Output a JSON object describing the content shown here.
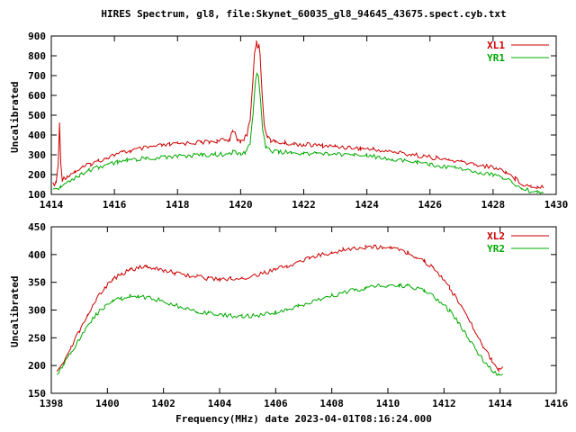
{
  "title": "HIRES Spectrum, gl8, file:Skynet_60035_gl8_94645_43675.spect.cyb.txt",
  "xlabel": "Frequency(MHz) date 2023-04-01T08:16:24.000",
  "colors": {
    "xl": "#cc0000",
    "yr": "#00aa00",
    "text": "#000000",
    "axis": "#000000"
  },
  "chart_data": [
    {
      "type": "line",
      "title": "Top spectrum panel",
      "ylabel": "Uncalibrated",
      "xlim": [
        1414,
        1430
      ],
      "ylim": [
        100,
        900
      ],
      "xticks": [
        1414,
        1416,
        1418,
        1420,
        1422,
        1424,
        1426,
        1428,
        1430
      ],
      "yticks": [
        100,
        200,
        300,
        400,
        500,
        600,
        700,
        800,
        900
      ],
      "grid": false,
      "legend_position": "top-right",
      "series": [
        {
          "name": "XL1",
          "color": "#cc0000",
          "points": [
            [
              1414.05,
              148
            ],
            [
              1414.15,
              158
            ],
            [
              1414.22,
              250
            ],
            [
              1414.26,
              455
            ],
            [
              1414.3,
              260
            ],
            [
              1414.35,
              175
            ],
            [
              1414.5,
              192
            ],
            [
              1414.75,
              215
            ],
            [
              1415.0,
              236
            ],
            [
              1415.25,
              254
            ],
            [
              1415.5,
              270
            ],
            [
              1415.75,
              286
            ],
            [
              1416.0,
              300
            ],
            [
              1416.25,
              311
            ],
            [
              1416.5,
              320
            ],
            [
              1416.75,
              328
            ],
            [
              1417.0,
              335
            ],
            [
              1417.25,
              341
            ],
            [
              1417.5,
              346
            ],
            [
              1417.75,
              351
            ],
            [
              1418.0,
              355
            ],
            [
              1418.25,
              358
            ],
            [
              1418.5,
              361
            ],
            [
              1418.75,
              363
            ],
            [
              1419.0,
              366
            ],
            [
              1419.25,
              369
            ],
            [
              1419.5,
              373
            ],
            [
              1419.65,
              378
            ],
            [
              1419.75,
              428
            ],
            [
              1419.82,
              405
            ],
            [
              1419.9,
              372
            ],
            [
              1420.0,
              368
            ],
            [
              1420.1,
              378
            ],
            [
              1420.2,
              400
            ],
            [
              1420.3,
              480
            ],
            [
              1420.38,
              650
            ],
            [
              1420.44,
              820
            ],
            [
              1420.5,
              868
            ],
            [
              1420.54,
              845
            ],
            [
              1420.58,
              862
            ],
            [
              1420.62,
              800
            ],
            [
              1420.68,
              600
            ],
            [
              1420.75,
              450
            ],
            [
              1420.85,
              395
            ],
            [
              1420.95,
              372
            ],
            [
              1421.1,
              364
            ],
            [
              1421.4,
              359
            ],
            [
              1421.7,
              355
            ],
            [
              1422.0,
              352
            ],
            [
              1422.3,
              349
            ],
            [
              1422.6,
              346
            ],
            [
              1423.0,
              342
            ],
            [
              1423.4,
              338
            ],
            [
              1423.8,
              333
            ],
            [
              1424.2,
              327
            ],
            [
              1424.6,
              319
            ],
            [
              1425.0,
              311
            ],
            [
              1425.4,
              302
            ],
            [
              1425.8,
              293
            ],
            [
              1426.2,
              283
            ],
            [
              1426.6,
              273
            ],
            [
              1427.0,
              263
            ],
            [
              1427.4,
              253
            ],
            [
              1427.8,
              243
            ],
            [
              1428.1,
              233
            ],
            [
              1428.4,
              215
            ],
            [
              1428.7,
              180
            ],
            [
              1428.95,
              152
            ],
            [
              1429.2,
              141
            ],
            [
              1429.4,
              139
            ],
            [
              1429.6,
              142
            ]
          ]
        },
        {
          "name": "YR1",
          "color": "#00aa00",
          "points": [
            [
              1414.05,
              118
            ],
            [
              1414.3,
              140
            ],
            [
              1414.6,
              170
            ],
            [
              1414.9,
              197
            ],
            [
              1415.2,
              220
            ],
            [
              1415.5,
              238
            ],
            [
              1415.8,
              252
            ],
            [
              1416.1,
              263
            ],
            [
              1416.4,
              271
            ],
            [
              1416.7,
              277
            ],
            [
              1417.0,
              282
            ],
            [
              1417.3,
              286
            ],
            [
              1417.6,
              289
            ],
            [
              1418.0,
              293
            ],
            [
              1418.4,
              296
            ],
            [
              1418.8,
              299
            ],
            [
              1419.2,
              301
            ],
            [
              1419.6,
              304
            ],
            [
              1419.75,
              315
            ],
            [
              1419.85,
              308
            ],
            [
              1420.0,
              306
            ],
            [
              1420.15,
              312
            ],
            [
              1420.3,
              360
            ],
            [
              1420.4,
              520
            ],
            [
              1420.47,
              680
            ],
            [
              1420.52,
              708
            ],
            [
              1420.57,
              690
            ],
            [
              1420.63,
              570
            ],
            [
              1420.7,
              420
            ],
            [
              1420.8,
              340
            ],
            [
              1420.95,
              318
            ],
            [
              1421.2,
              313
            ],
            [
              1421.6,
              311
            ],
            [
              1422.0,
              309
            ],
            [
              1422.4,
              307
            ],
            [
              1422.8,
              305
            ],
            [
              1423.2,
              302
            ],
            [
              1423.6,
              299
            ],
            [
              1424.0,
              295
            ],
            [
              1424.4,
              288
            ],
            [
              1424.8,
              281
            ],
            [
              1425.2,
              272
            ],
            [
              1425.6,
              262
            ],
            [
              1426.0,
              252
            ],
            [
              1426.4,
              242
            ],
            [
              1426.8,
              232
            ],
            [
              1427.2,
              222
            ],
            [
              1427.6,
              211
            ],
            [
              1428.0,
              199
            ],
            [
              1428.3,
              185
            ],
            [
              1428.6,
              160
            ],
            [
              1428.9,
              133
            ],
            [
              1429.15,
              117
            ],
            [
              1429.4,
              111
            ],
            [
              1429.6,
              113
            ]
          ]
        }
      ]
    },
    {
      "type": "line",
      "title": "Bottom spectrum panel",
      "ylabel": "Uncalibrated",
      "xlim": [
        1398,
        1416
      ],
      "ylim": [
        150,
        450
      ],
      "xticks": [
        1398,
        1400,
        1402,
        1404,
        1406,
        1408,
        1410,
        1412,
        1414,
        1416
      ],
      "yticks": [
        150,
        200,
        250,
        300,
        350,
        400,
        450
      ],
      "grid": false,
      "legend_position": "top-right",
      "series": [
        {
          "name": "XL2",
          "color": "#cc0000",
          "points": [
            [
              1398.2,
              190
            ],
            [
              1398.45,
              210
            ],
            [
              1398.7,
              232
            ],
            [
              1399.0,
              262
            ],
            [
              1399.3,
              292
            ],
            [
              1399.6,
              318
            ],
            [
              1399.9,
              340
            ],
            [
              1400.2,
              355
            ],
            [
              1400.5,
              365
            ],
            [
              1400.8,
              372
            ],
            [
              1401.1,
              376
            ],
            [
              1401.4,
              377
            ],
            [
              1401.7,
              375
            ],
            [
              1402.0,
              372
            ],
            [
              1402.4,
              367
            ],
            [
              1402.8,
              363
            ],
            [
              1403.2,
              360
            ],
            [
              1403.6,
              357
            ],
            [
              1404.0,
              356
            ],
            [
              1404.4,
              356
            ],
            [
              1404.8,
              358
            ],
            [
              1405.2,
              362
            ],
            [
              1405.6,
              367
            ],
            [
              1406.0,
              373
            ],
            [
              1406.4,
              379
            ],
            [
              1406.8,
              386
            ],
            [
              1407.2,
              393
            ],
            [
              1407.6,
              399
            ],
            [
              1408.0,
              404
            ],
            [
              1408.4,
              408
            ],
            [
              1408.8,
              411
            ],
            [
              1409.2,
              413
            ],
            [
              1409.5,
              414
            ],
            [
              1409.8,
              412
            ],
            [
              1410.1,
              411
            ],
            [
              1410.4,
              409
            ],
            [
              1410.7,
              404
            ],
            [
              1411.0,
              397
            ],
            [
              1411.3,
              388
            ],
            [
              1411.6,
              376
            ],
            [
              1411.9,
              360
            ],
            [
              1412.2,
              340
            ],
            [
              1412.5,
              317
            ],
            [
              1412.8,
              290
            ],
            [
              1413.1,
              262
            ],
            [
              1413.4,
              235
            ],
            [
              1413.7,
              210
            ],
            [
              1413.95,
              194
            ],
            [
              1414.1,
              196
            ]
          ]
        },
        {
          "name": "YR2",
          "color": "#00aa00",
          "points": [
            [
              1398.2,
              184
            ],
            [
              1398.45,
              202
            ],
            [
              1398.7,
              222
            ],
            [
              1399.0,
              248
            ],
            [
              1399.3,
              272
            ],
            [
              1399.6,
              292
            ],
            [
              1399.9,
              306
            ],
            [
              1400.2,
              315
            ],
            [
              1400.5,
              321
            ],
            [
              1400.8,
              324
            ],
            [
              1401.1,
              325
            ],
            [
              1401.4,
              323
            ],
            [
              1401.7,
              320
            ],
            [
              1402.0,
              315
            ],
            [
              1402.4,
              309
            ],
            [
              1402.8,
              303
            ],
            [
              1403.2,
              298
            ],
            [
              1403.6,
              294
            ],
            [
              1404.0,
              291
            ],
            [
              1404.4,
              290
            ],
            [
              1404.8,
              289
            ],
            [
              1405.2,
              290
            ],
            [
              1405.6,
              292
            ],
            [
              1406.0,
              296
            ],
            [
              1406.4,
              301
            ],
            [
              1406.8,
              307
            ],
            [
              1407.2,
              313
            ],
            [
              1407.6,
              320
            ],
            [
              1408.0,
              326
            ],
            [
              1408.4,
              331
            ],
            [
              1408.8,
              336
            ],
            [
              1409.2,
              340
            ],
            [
              1409.6,
              343
            ],
            [
              1410.0,
              345
            ],
            [
              1410.4,
              345
            ],
            [
              1410.7,
              343
            ],
            [
              1411.0,
              339
            ],
            [
              1411.3,
              333
            ],
            [
              1411.6,
              325
            ],
            [
              1411.9,
              313
            ],
            [
              1412.2,
              298
            ],
            [
              1412.5,
              278
            ],
            [
              1412.8,
              255
            ],
            [
              1413.1,
              231
            ],
            [
              1413.4,
              209
            ],
            [
              1413.7,
              192
            ],
            [
              1413.95,
              184
            ],
            [
              1414.1,
              187
            ]
          ]
        }
      ]
    }
  ]
}
